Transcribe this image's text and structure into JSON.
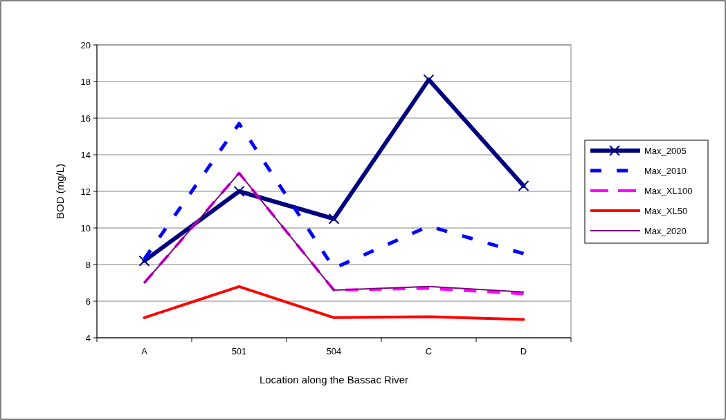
{
  "chart_data": {
    "type": "line",
    "xlabel": "Location along the Bassac River",
    "ylabel": "BOD (mg/L)",
    "categories": [
      "A",
      "501",
      "504",
      "C",
      "D"
    ],
    "ylim": [
      4,
      20
    ],
    "yticks": [
      4,
      6,
      8,
      10,
      12,
      14,
      16,
      18,
      20
    ],
    "grid": "y",
    "legend": "right",
    "series": [
      {
        "name": "Max_2005",
        "color": "#000080",
        "values": [
          8.2,
          12.0,
          10.5,
          18.1,
          12.3
        ],
        "marker": "cross",
        "line_style": "solid"
      },
      {
        "name": "Max_2010",
        "color": "#0000ff",
        "values": [
          8.3,
          15.7,
          7.8,
          10.1,
          8.6
        ],
        "marker": "none",
        "line_style": "dashed"
      },
      {
        "name": "Max_XL100",
        "color": "#ff00ff",
        "values": [
          7.0,
          13.0,
          6.6,
          6.7,
          6.4
        ],
        "marker": "none",
        "line_style": "dashed"
      },
      {
        "name": "Max_XL50",
        "color": "#ff0000",
        "values": [
          5.1,
          6.8,
          5.1,
          5.15,
          5.0
        ],
        "marker": "none",
        "line_style": "solid"
      },
      {
        "name": "Max_2020",
        "color": "#800080",
        "values": [
          7.0,
          13.0,
          6.6,
          6.8,
          6.5
        ],
        "marker": "none",
        "line_style": "solid"
      }
    ]
  }
}
